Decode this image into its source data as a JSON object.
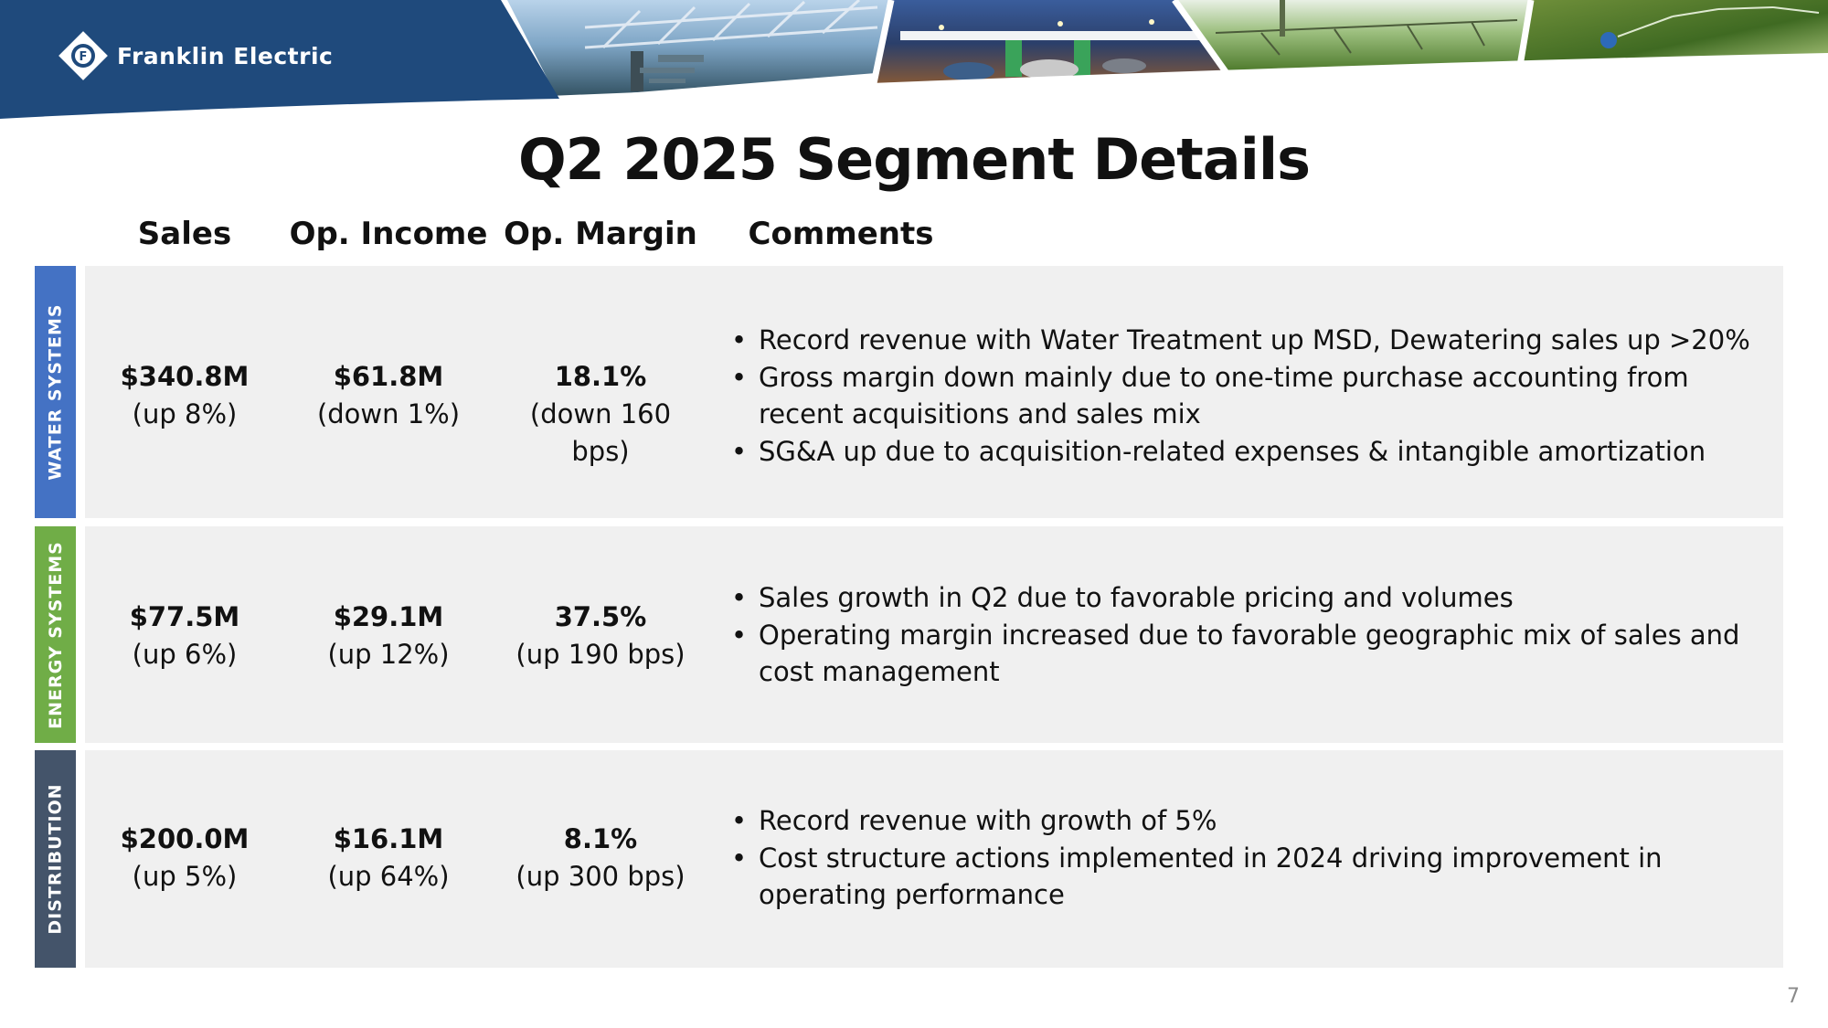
{
  "header": {
    "brand_name": "Franklin Electric",
    "brand_color": "#1f4a7c",
    "photos": [
      "water-treatment-photo",
      "fuel-station-photo",
      "irrigation-field-photo",
      "sprinkler-photo"
    ]
  },
  "slide": {
    "title": "Q2 2025 Segment Details",
    "page_number": "7"
  },
  "columns": {
    "sales": "Sales",
    "op_income": "Op. Income",
    "op_margin": "Op. Margin",
    "comments": "Comments"
  },
  "segments": [
    {
      "label": "WATER SYSTEMS",
      "color": "#4472c4",
      "sales": "$340.8M",
      "sales_change": "(up 8%)",
      "op_income": "$61.8M",
      "op_income_change": "(down 1%)",
      "op_margin": "18.1%",
      "op_margin_change": "(down 160 bps)",
      "comments": [
        "Record revenue with Water Treatment up MSD, Dewatering sales up >20%",
        "Gross margin down mainly due to one-time purchase accounting from recent acquisitions and sales mix",
        "SG&A up due to acquisition-related expenses & intangible amortization"
      ]
    },
    {
      "label": "ENERGY SYSTEMS",
      "color": "#70ad47",
      "sales": "$77.5M",
      "sales_change": "(up 6%)",
      "op_income": "$29.1M",
      "op_income_change": "(up 12%)",
      "op_margin": "37.5%",
      "op_margin_change": "(up 190 bps)",
      "comments": [
        "Sales growth in Q2 due to favorable pricing and volumes",
        "Operating margin increased due to favorable geographic mix of sales and cost management"
      ]
    },
    {
      "label": "DISTRIBUTION",
      "color": "#44546a",
      "sales": "$200.0M",
      "sales_change": "(up 5%)",
      "op_income": "$16.1M",
      "op_income_change": "(up 64%)",
      "op_margin": "8.1%",
      "op_margin_change": "(up 300 bps)",
      "comments": [
        "Record revenue with growth of 5%",
        "Cost structure actions implemented in 2024 driving improvement in operating performance"
      ]
    }
  ]
}
